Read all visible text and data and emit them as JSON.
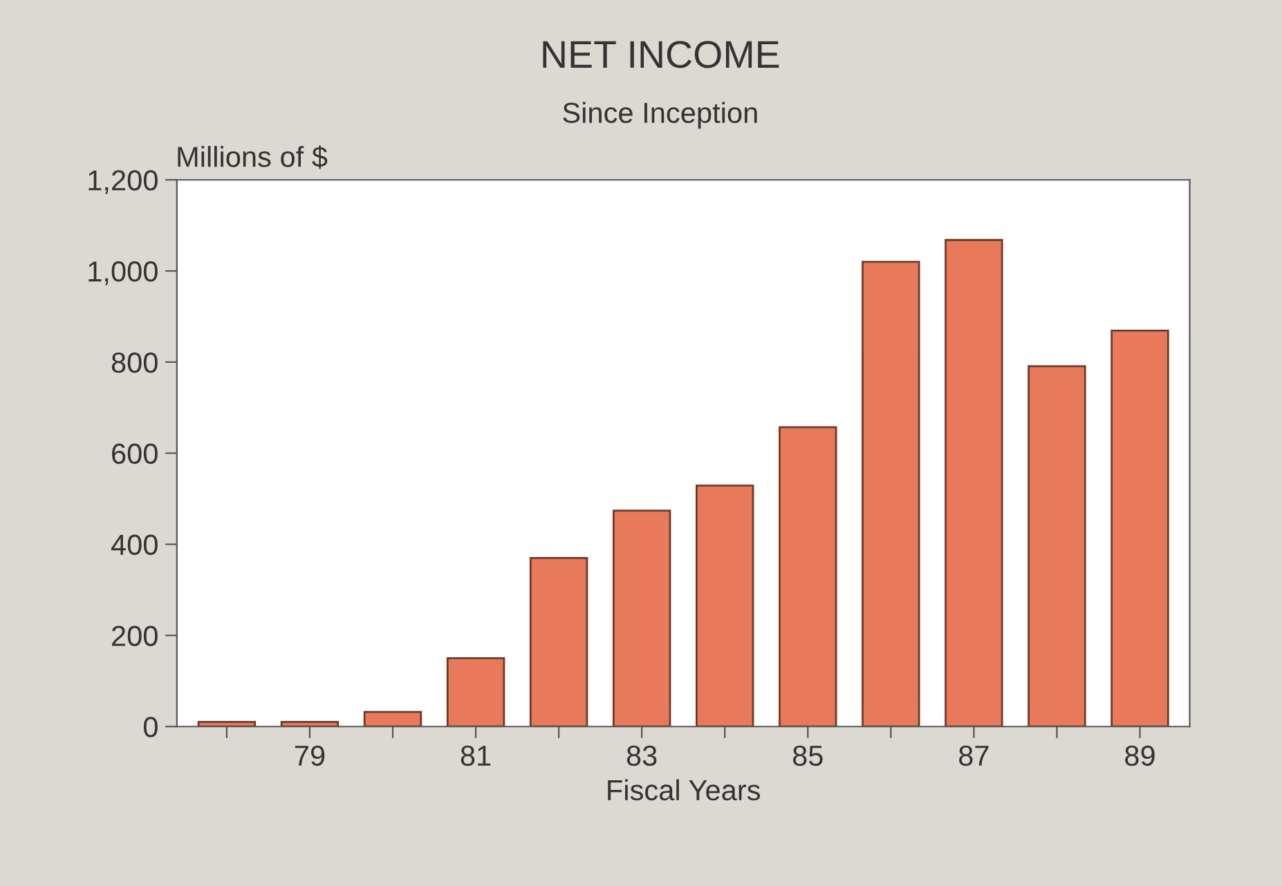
{
  "chart_data": {
    "type": "bar",
    "title": "NET INCOME",
    "subtitle": "Since Inception",
    "ylabel": "Millions of $",
    "xlabel": "Fiscal Years",
    "categories": [
      null,
      "79",
      null,
      "81",
      null,
      "83",
      null,
      "85",
      null,
      "87",
      null,
      "89"
    ],
    "values": [
      10,
      10,
      32,
      150,
      370,
      474,
      529,
      657,
      1020,
      1068,
      791,
      869
    ],
    "color": "#e8795a",
    "ylim": [
      0,
      1200
    ],
    "yticks": [
      0,
      200,
      400,
      600,
      800,
      {
        "value": 1000,
        "label": "1,000"
      },
      {
        "value": 1200,
        "label": "1,200"
      }
    ],
    "grid": false
  }
}
